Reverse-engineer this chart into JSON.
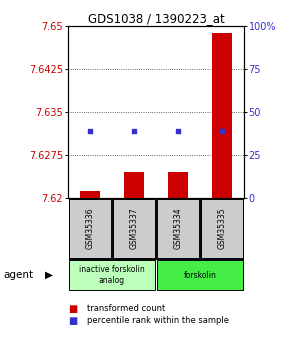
{
  "title": "GDS1038 / 1390223_at",
  "samples": [
    "GSM35336",
    "GSM35337",
    "GSM35334",
    "GSM35335"
  ],
  "bar_values": [
    7.6212,
    7.6245,
    7.6245,
    7.6488
  ],
  "bar_baseline": 7.62,
  "percentile_values": [
    7.6318,
    7.6318,
    7.6318,
    7.6318
  ],
  "ylim_left": [
    7.62,
    7.65
  ],
  "yticks_left": [
    7.62,
    7.6275,
    7.635,
    7.6425,
    7.65
  ],
  "ytick_labels_left": [
    "7.62",
    "7.6275",
    "7.635",
    "7.6425",
    "7.65"
  ],
  "yticks_right_pct": [
    0,
    25,
    50,
    75,
    100
  ],
  "ytick_labels_right": [
    "0",
    "25",
    "50",
    "75",
    "100%"
  ],
  "bar_color": "#cc0000",
  "percentile_color": "#3333cc",
  "grid_color": "#333333",
  "plot_bg": "#ffffff",
  "sample_box_color": "#cccccc",
  "agent_groups": [
    {
      "label": "inactive forskolin\nanalog",
      "color": "#bbffbb",
      "cols": [
        1,
        2
      ]
    },
    {
      "label": "forskolin",
      "color": "#44ee44",
      "cols": [
        3,
        4
      ]
    }
  ],
  "bar_width": 0.45,
  "left_tick_color": "#cc0000",
  "right_tick_color": "#3333cc"
}
